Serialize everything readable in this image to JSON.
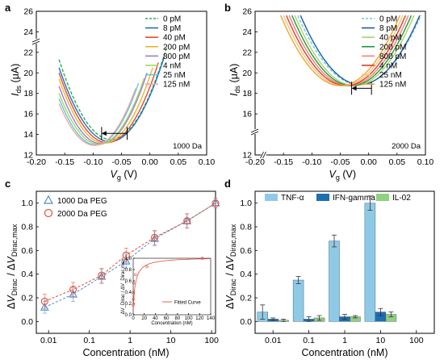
{
  "chart_data": [
    {
      "panel": "a",
      "type": "line",
      "xlabel": "V_g (V)",
      "ylabel": "I_ds (μA)",
      "xlim": [
        -0.2,
        0.1
      ],
      "ylim": [
        12,
        26
      ],
      "x_ticks": [
        "-0.20",
        "-0.15",
        "-0.10",
        "-0.05",
        "0.00",
        "0.05",
        "0.10"
      ],
      "y_ticks": [
        "12",
        "14",
        "16",
        "18",
        "20",
        "22",
        "24",
        "26"
      ],
      "axis_break": "y between 22 and 24",
      "annotation": "1000 Da",
      "shift_arrow": {
        "from_v": -0.04,
        "to_v": -0.085,
        "i": 14.1
      },
      "legend_position": "top-right",
      "series": [
        {
          "name": "0 pM",
          "color": "#33a852",
          "dashed": true,
          "points": [
            [
              -0.16,
              21.3
            ],
            [
              -0.07,
              13.5
            ],
            [
              0.03,
              22.6
            ]
          ]
        },
        {
          "name": "8 pM",
          "color": "#1f72b8",
          "points": [
            [
              -0.16,
              20.5
            ],
            [
              -0.07,
              13.3
            ],
            [
              0.025,
              21.5
            ]
          ]
        },
        {
          "name": "40 pM",
          "color": "#e8492d",
          "points": [
            [
              -0.16,
              20.0
            ],
            [
              -0.075,
              13.2
            ],
            [
              0.015,
              21.0
            ]
          ]
        },
        {
          "name": "200 pM",
          "color": "#e8b830",
          "points": [
            [
              -0.16,
              19.4
            ],
            [
              -0.08,
              13.15
            ],
            [
              0.005,
              20.5
            ]
          ]
        },
        {
          "name": "800 pM",
          "color": "#9a7ad6",
          "points": [
            [
              -0.16,
              18.7
            ],
            [
              -0.085,
              13.1
            ],
            [
              -0.005,
              20.0
            ]
          ]
        },
        {
          "name": "4 nM",
          "color": "#a6d65c",
          "points": [
            [
              -0.16,
              18.0
            ],
            [
              -0.085,
              13.05
            ],
            [
              -0.01,
              19.5
            ]
          ]
        },
        {
          "name": "25 nM",
          "color": "#5bc8e0",
          "points": [
            [
              -0.16,
              17.5
            ],
            [
              -0.09,
              13.0
            ],
            [
              -0.02,
              19.0
            ]
          ]
        },
        {
          "name": "125 nM",
          "color": "#f3a3a3",
          "points": [
            [
              -0.16,
              17.0
            ],
            [
              -0.09,
              13.0
            ],
            [
              -0.025,
              18.5
            ]
          ]
        }
      ]
    },
    {
      "panel": "b",
      "type": "line",
      "xlabel": "V_g (V)",
      "ylabel": "I_ds (μA)",
      "xlim": [
        -0.2,
        0.1
      ],
      "ylim": [
        12,
        26
      ],
      "x_ticks": [
        "-0.20",
        "-0.15",
        "-0.10",
        "-0.05",
        "0.00",
        "0.05",
        "0.10"
      ],
      "y_ticks": [
        "12",
        "16",
        "18",
        "20",
        "22",
        "24",
        "26"
      ],
      "axis_break": "y between 12 and 16, x between -0.20 and -0.15",
      "annotation": "2000 Da",
      "shift_arrow": {
        "from_v": 0.005,
        "to_v": -0.03,
        "i": 18.5
      },
      "legend_position": "top-right",
      "series": [
        {
          "name": "0 pM",
          "color": "#6cc7e6",
          "dashed": true,
          "points": [
            [
              -0.125,
              25.6
            ],
            [
              0.0,
              19.0
            ],
            [
              0.092,
              25.6
            ]
          ]
        },
        {
          "name": "8 pM",
          "color": "#1f5aa8",
          "points": [
            [
              -0.12,
              25.6
            ],
            [
              0.0,
              19.0
            ],
            [
              0.09,
              25.6
            ]
          ]
        },
        {
          "name": "40 pM",
          "color": "#a5d66b",
          "points": [
            [
              -0.13,
              25.6
            ],
            [
              -0.005,
              19.0
            ],
            [
              0.08,
              25.6
            ]
          ]
        },
        {
          "name": "200 pM",
          "color": "#1f9a3a",
          "points": [
            [
              -0.135,
              25.6
            ],
            [
              -0.01,
              19.0
            ],
            [
              0.075,
              25.6
            ]
          ]
        },
        {
          "name": "800 pM",
          "color": "#f08080",
          "points": [
            [
              -0.14,
              25.6
            ],
            [
              -0.015,
              19.0
            ],
            [
              0.07,
              25.6
            ]
          ]
        },
        {
          "name": "4 nM",
          "color": "#e03a2d",
          "points": [
            [
              -0.145,
              25.6
            ],
            [
              -0.02,
              19.0
            ],
            [
              0.065,
              25.6
            ]
          ]
        },
        {
          "name": "25 nM",
          "color": "#f2c67a",
          "points": [
            [
              -0.15,
              25.6
            ],
            [
              -0.025,
              19.0
            ],
            [
              0.06,
              25.6
            ]
          ]
        },
        {
          "name": "125 nM",
          "color": "#f3a330",
          "points": [
            [
              -0.155,
              25.6
            ],
            [
              -0.03,
              19.0
            ],
            [
              0.055,
              25.6
            ]
          ]
        }
      ]
    },
    {
      "panel": "c",
      "type": "scatter",
      "xlabel": "Concentration (nM)",
      "ylabel": "ΔV_Dirac / ΔV_Dirac,max",
      "xscale": "log",
      "xlim": [
        0.005,
        125
      ],
      "ylim": [
        -0.1,
        1.1
      ],
      "x_ticks": [
        "0.01",
        "0.1",
        "1",
        "10",
        "100"
      ],
      "y_ticks": [
        "0.0",
        "0.2",
        "0.4",
        "0.6",
        "0.8",
        "1.0"
      ],
      "legend_position": "top-left",
      "x": [
        0.008,
        0.04,
        0.2,
        0.8,
        4,
        25,
        125
      ],
      "series": [
        {
          "name": "1000 Da PEG",
          "marker": "triangle",
          "color": "#4a8fd0",
          "values": [
            0.12,
            0.23,
            0.38,
            0.51,
            0.7,
            0.85,
            1.0
          ],
          "errors": [
            0.05,
            0.06,
            0.06,
            0.06,
            0.06,
            0.06,
            0.04
          ]
        },
        {
          "name": "2000 Da PEG",
          "marker": "circle",
          "color": "#e0503a",
          "values": [
            0.17,
            0.27,
            0.39,
            0.56,
            0.71,
            0.85,
            1.0
          ],
          "errors": [
            0.06,
            0.06,
            0.06,
            0.06,
            0.06,
            0.06,
            0.04
          ]
        }
      ],
      "inset": {
        "xlabel": "Concentration (nM)",
        "ylabel": "ΔV_Dirac / ΔV_Dirac,max",
        "legend": "Fitted Curve",
        "x_ticks": [
          "0",
          "20",
          "40",
          "60",
          "80",
          "100",
          "120",
          "140"
        ],
        "y_ticks": [
          "0.0",
          "0.2",
          "0.4",
          "0.6",
          "0.8",
          "1.0"
        ],
        "points_x": [
          0.008,
          0.04,
          0.2,
          0.8,
          4,
          25,
          125
        ],
        "points_y": [
          0.17,
          0.27,
          0.39,
          0.56,
          0.71,
          0.85,
          1.0
        ]
      }
    },
    {
      "panel": "d",
      "type": "bar",
      "xlabel": "Concentration (nM)",
      "ylabel": "ΔV_Dirac / ΔV_Dirac,max",
      "categories": [
        "0.01",
        "0.1",
        "1",
        "10",
        "100"
      ],
      "ylim": [
        -0.1,
        1.1
      ],
      "y_ticks": [
        "0.0",
        "0.2",
        "0.4",
        "0.6",
        "0.8",
        "1.0"
      ],
      "legend_position": "top",
      "series": [
        {
          "name": "TNF-α",
          "color": "#8ecae6",
          "values": [
            0.08,
            0.35,
            0.68,
            1.0,
            null
          ],
          "errors": [
            0.06,
            0.03,
            0.05,
            0.06,
            null
          ]
        },
        {
          "name": "IFN-gamma",
          "color": "#1f6eb0",
          "values": [
            0.02,
            0.02,
            0.04,
            0.08,
            null
          ],
          "errors": [
            0.01,
            0.02,
            0.02,
            0.03,
            null
          ]
        },
        {
          "name": "IL-02",
          "color": "#8fd17f",
          "values": [
            0.01,
            0.03,
            0.04,
            0.06,
            null
          ],
          "errors": [
            0.01,
            0.02,
            0.01,
            0.02,
            null
          ]
        }
      ]
    }
  ]
}
